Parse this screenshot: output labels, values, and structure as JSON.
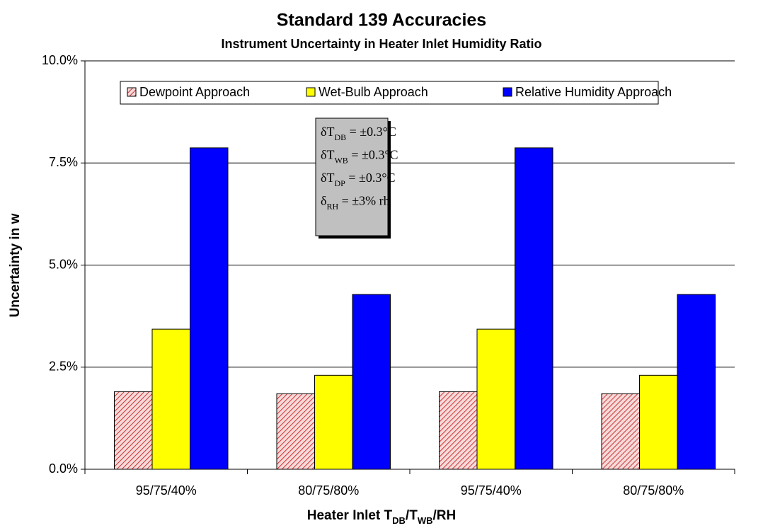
{
  "chart_data": {
    "type": "bar",
    "title": "Standard 139 Accuracies",
    "subtitle": "Instrument Uncertainty in Heater Inlet Humidity Ratio",
    "ylabel": "Uncertainty in w",
    "xlabel_parts": [
      {
        "text": "Heater Inlet T"
      },
      {
        "text": "DB",
        "sub": true
      },
      {
        "text": "/T"
      },
      {
        "text": "WB",
        "sub": true
      },
      {
        "text": "/RH"
      }
    ],
    "categories": [
      "95/75/40%",
      "80/75/80%",
      "95/75/40%",
      "80/75/80%"
    ],
    "series": [
      {
        "name": "Dewpoint Approach",
        "color": "#cc3333",
        "hatch": true,
        "values": [
          1.9,
          1.85,
          1.9,
          1.85
        ]
      },
      {
        "name": "Wet-Bulb Approach",
        "color": "#ffff00",
        "values": [
          3.43,
          2.3,
          3.43,
          2.3
        ]
      },
      {
        "name": "Relative Humidity Approach",
        "color": "#0000ff",
        "values": [
          7.87,
          4.28,
          7.87,
          4.28
        ]
      }
    ],
    "ylim": [
      0,
      10
    ],
    "yticks": [
      {
        "value": 0,
        "label": "0.0%"
      },
      {
        "value": 2.5,
        "label": "2.5%"
      },
      {
        "value": 5,
        "label": "5.0%"
      },
      {
        "value": 7.5,
        "label": "7.5%"
      },
      {
        "value": 10,
        "label": "10.0%"
      }
    ],
    "grid": true,
    "legend": "top",
    "annotation": [
      {
        "main": "δT",
        "sub": "DB",
        "rest": " = ±0.3°C"
      },
      {
        "main": "δT",
        "sub": "WB",
        "rest": " = ±0.3°C"
      },
      {
        "main": "δT",
        "sub": "DP",
        "rest": " = ±0.3°C"
      },
      {
        "main": "δ",
        "sub": "RH",
        "rest": " = ±3% rh"
      }
    ]
  }
}
